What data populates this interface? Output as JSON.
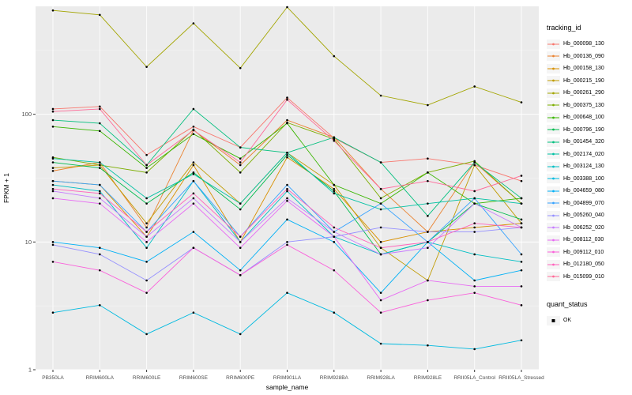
{
  "style": {
    "panel_bg": "#EBEBEB",
    "grid_color": "#FFFFFF",
    "tick_color": "#333333",
    "tick_label_color": "#4D4D4D",
    "axis_title_color": "#000000"
  },
  "chart_data": {
    "type": "line",
    "title": "",
    "xlabel": "sample_name",
    "ylabel": "FPKM + 1",
    "y_scale": "log10",
    "ylim": [
      1,
      700
    ],
    "y_ticks": [
      1,
      10,
      100
    ],
    "y_minor": [
      3.1623,
      31.623,
      316.23
    ],
    "grid": true,
    "point_color": "#000000",
    "categories": [
      "PB350LA",
      "RRIM600LA",
      "RRIM600LE",
      "RRIM600SE",
      "RRIM600PE",
      "RRIM901LA",
      "RRIM928BA",
      "RRIM928LA",
      "RRIM928LE",
      "RRII05LA_Control",
      "RRII05LA_Stressed"
    ],
    "legend": {
      "title": "tracking_id",
      "position": "right"
    },
    "quant_legend": {
      "title": "quant_status",
      "items": [
        {
          "label": "OK",
          "marker": "square",
          "color": "#000000"
        }
      ]
    },
    "series": [
      {
        "name": "Hb_000098_130",
        "color": "#F8766D",
        "values": [
          110,
          115,
          48,
          80,
          55,
          135,
          65,
          42,
          45,
          40,
          30
        ]
      },
      {
        "name": "Hb_000136_090",
        "color": "#EA8331",
        "values": [
          36,
          42,
          13,
          75,
          40,
          90,
          66,
          26,
          12,
          42,
          20
        ]
      },
      {
        "name": "Hb_000158_130",
        "color": "#D89000",
        "values": [
          30,
          28,
          11,
          40,
          10,
          46,
          26,
          10,
          12,
          13,
          14
        ]
      },
      {
        "name": "Hb_000215_190",
        "color": "#C09B00",
        "values": [
          38,
          40,
          14,
          42,
          20,
          50,
          28,
          9,
          5,
          40,
          14
        ]
      },
      {
        "name": "Hb_000261_290",
        "color": "#A3A500",
        "values": [
          650,
          600,
          235,
          515,
          230,
          690,
          285,
          140,
          118,
          165,
          124
        ]
      },
      {
        "name": "Hb_000375_130",
        "color": "#7CAE00",
        "values": [
          46,
          40,
          35,
          76,
          35,
          86,
          64,
          22,
          35,
          43,
          20
        ]
      },
      {
        "name": "Hb_000648_100",
        "color": "#39B600",
        "values": [
          80,
          74,
          38,
          70,
          45,
          85,
          28,
          20,
          35,
          20,
          22
        ]
      },
      {
        "name": "Hb_000796_190",
        "color": "#00BB4E",
        "values": [
          42,
          38,
          20,
          35,
          18,
          48,
          25,
          8,
          10,
          20,
          15
        ]
      },
      {
        "name": "Hb_001454_320",
        "color": "#00BF7D",
        "values": [
          90,
          85,
          40,
          110,
          55,
          50,
          66,
          42,
          16,
          42,
          22
        ]
      },
      {
        "name": "Hb_002174_020",
        "color": "#00C1A3",
        "values": [
          45,
          42,
          22,
          34,
          20,
          50,
          24,
          18,
          20,
          22,
          20
        ]
      },
      {
        "name": "Hb_003124_130",
        "color": "#00BFC4",
        "values": [
          28,
          25,
          9,
          30,
          10,
          25,
          11,
          8,
          10,
          8,
          7
        ]
      },
      {
        "name": "Hb_003388_100",
        "color": "#00BAE0",
        "values": [
          2.8,
          3.2,
          1.9,
          2.8,
          1.9,
          4.0,
          2.8,
          1.6,
          1.55,
          1.45,
          1.7
        ]
      },
      {
        "name": "Hb_004659_080",
        "color": "#00B0F6",
        "values": [
          10,
          9,
          7,
          12,
          6,
          15,
          10,
          4,
          10,
          5,
          6
        ]
      },
      {
        "name": "Hb_004899_070",
        "color": "#35A2FF",
        "values": [
          30,
          28,
          12,
          30,
          11,
          28,
          12,
          20,
          10,
          22,
          8
        ]
      },
      {
        "name": "Hb_005260_040",
        "color": "#9590FF",
        "values": [
          9.5,
          8,
          5,
          9,
          5.5,
          10,
          11,
          13,
          12,
          12,
          13
        ]
      },
      {
        "name": "Hb_006252_020",
        "color": "#C77CFF",
        "values": [
          25,
          22,
          11,
          22,
          10,
          22,
          12,
          8,
          9,
          20,
          13
        ]
      },
      {
        "name": "Hb_008112_030",
        "color": "#E76BF3",
        "values": [
          22,
          20,
          10,
          20,
          9,
          21,
          11,
          3.5,
          5,
          4.5,
          4.5
        ]
      },
      {
        "name": "Hb_009112_010",
        "color": "#FA62DB",
        "values": [
          7,
          6,
          4,
          9,
          5.5,
          9.5,
          6,
          2.8,
          3.5,
          4,
          3.2
        ]
      },
      {
        "name": "Hb_012180_050",
        "color": "#FF62BC",
        "values": [
          26,
          24,
          12,
          24,
          11,
          26,
          13,
          9,
          10,
          14,
          13
        ]
      },
      {
        "name": "Hb_015099_010",
        "color": "#FF6A98",
        "values": [
          105,
          110,
          40,
          75,
          42,
          130,
          62,
          26,
          30,
          25,
          33
        ]
      }
    ]
  }
}
